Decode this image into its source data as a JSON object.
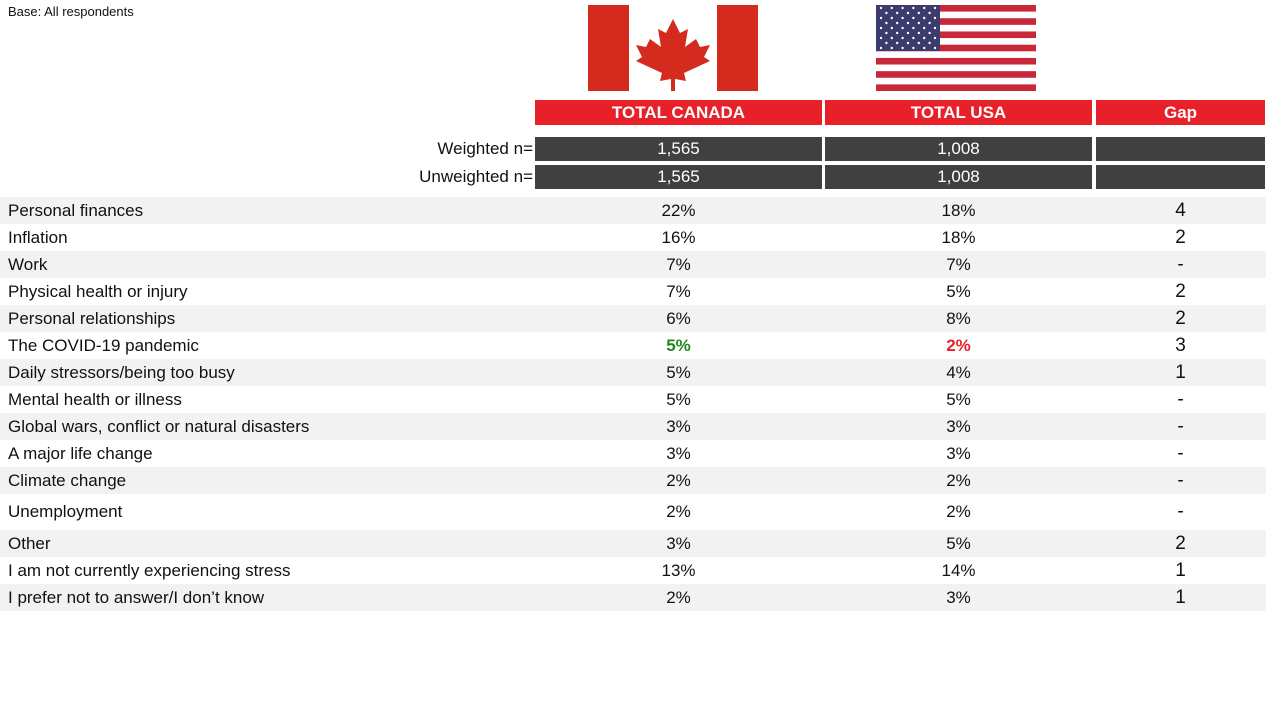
{
  "base": "Base: All respondents",
  "table": {
    "headers": [
      "TOTAL CANADA",
      "TOTAL USA",
      "Gap"
    ],
    "sample_rows": [
      {
        "label": "Weighted n=",
        "cells": [
          "1,565",
          "1,008"
        ]
      },
      {
        "label": "Unweighted n=",
        "cells": [
          "1,565",
          "1,008"
        ]
      }
    ],
    "rows": [
      [
        "Personal finances",
        "22%",
        "18%",
        4
      ],
      [
        "Inflation",
        "16%",
        "18%",
        2
      ],
      [
        "Work",
        "7%",
        "7%",
        "-"
      ],
      [
        "Physical health or injury",
        "7%",
        "5%",
        2
      ],
      [
        "Personal relationships",
        "6%",
        "8%",
        2
      ],
      [
        "The COVID-19 pandemic",
        "5%",
        "2%",
        3
      ],
      [
        "Daily stressors/being too busy",
        "5%",
        "4%",
        1
      ],
      [
        "Mental health or illness",
        "5%",
        "5%",
        "-"
      ],
      [
        "Global wars, conflict or natural disasters",
        "3%",
        "3%",
        "-"
      ],
      [
        "A major life change",
        "3%",
        "3%",
        "-"
      ],
      [
        "Climate change",
        "2%",
        "2%",
        "-"
      ],
      [
        "Unemployment",
        "2%",
        "2%",
        "-"
      ],
      [
        "Other",
        "3%",
        "5%",
        2
      ],
      [
        "I am not currently experiencing stress",
        "13%",
        "14%",
        1
      ],
      [
        "I prefer not to answer/I don’t know",
        "2%",
        "3%",
        1
      ]
    ]
  }
}
